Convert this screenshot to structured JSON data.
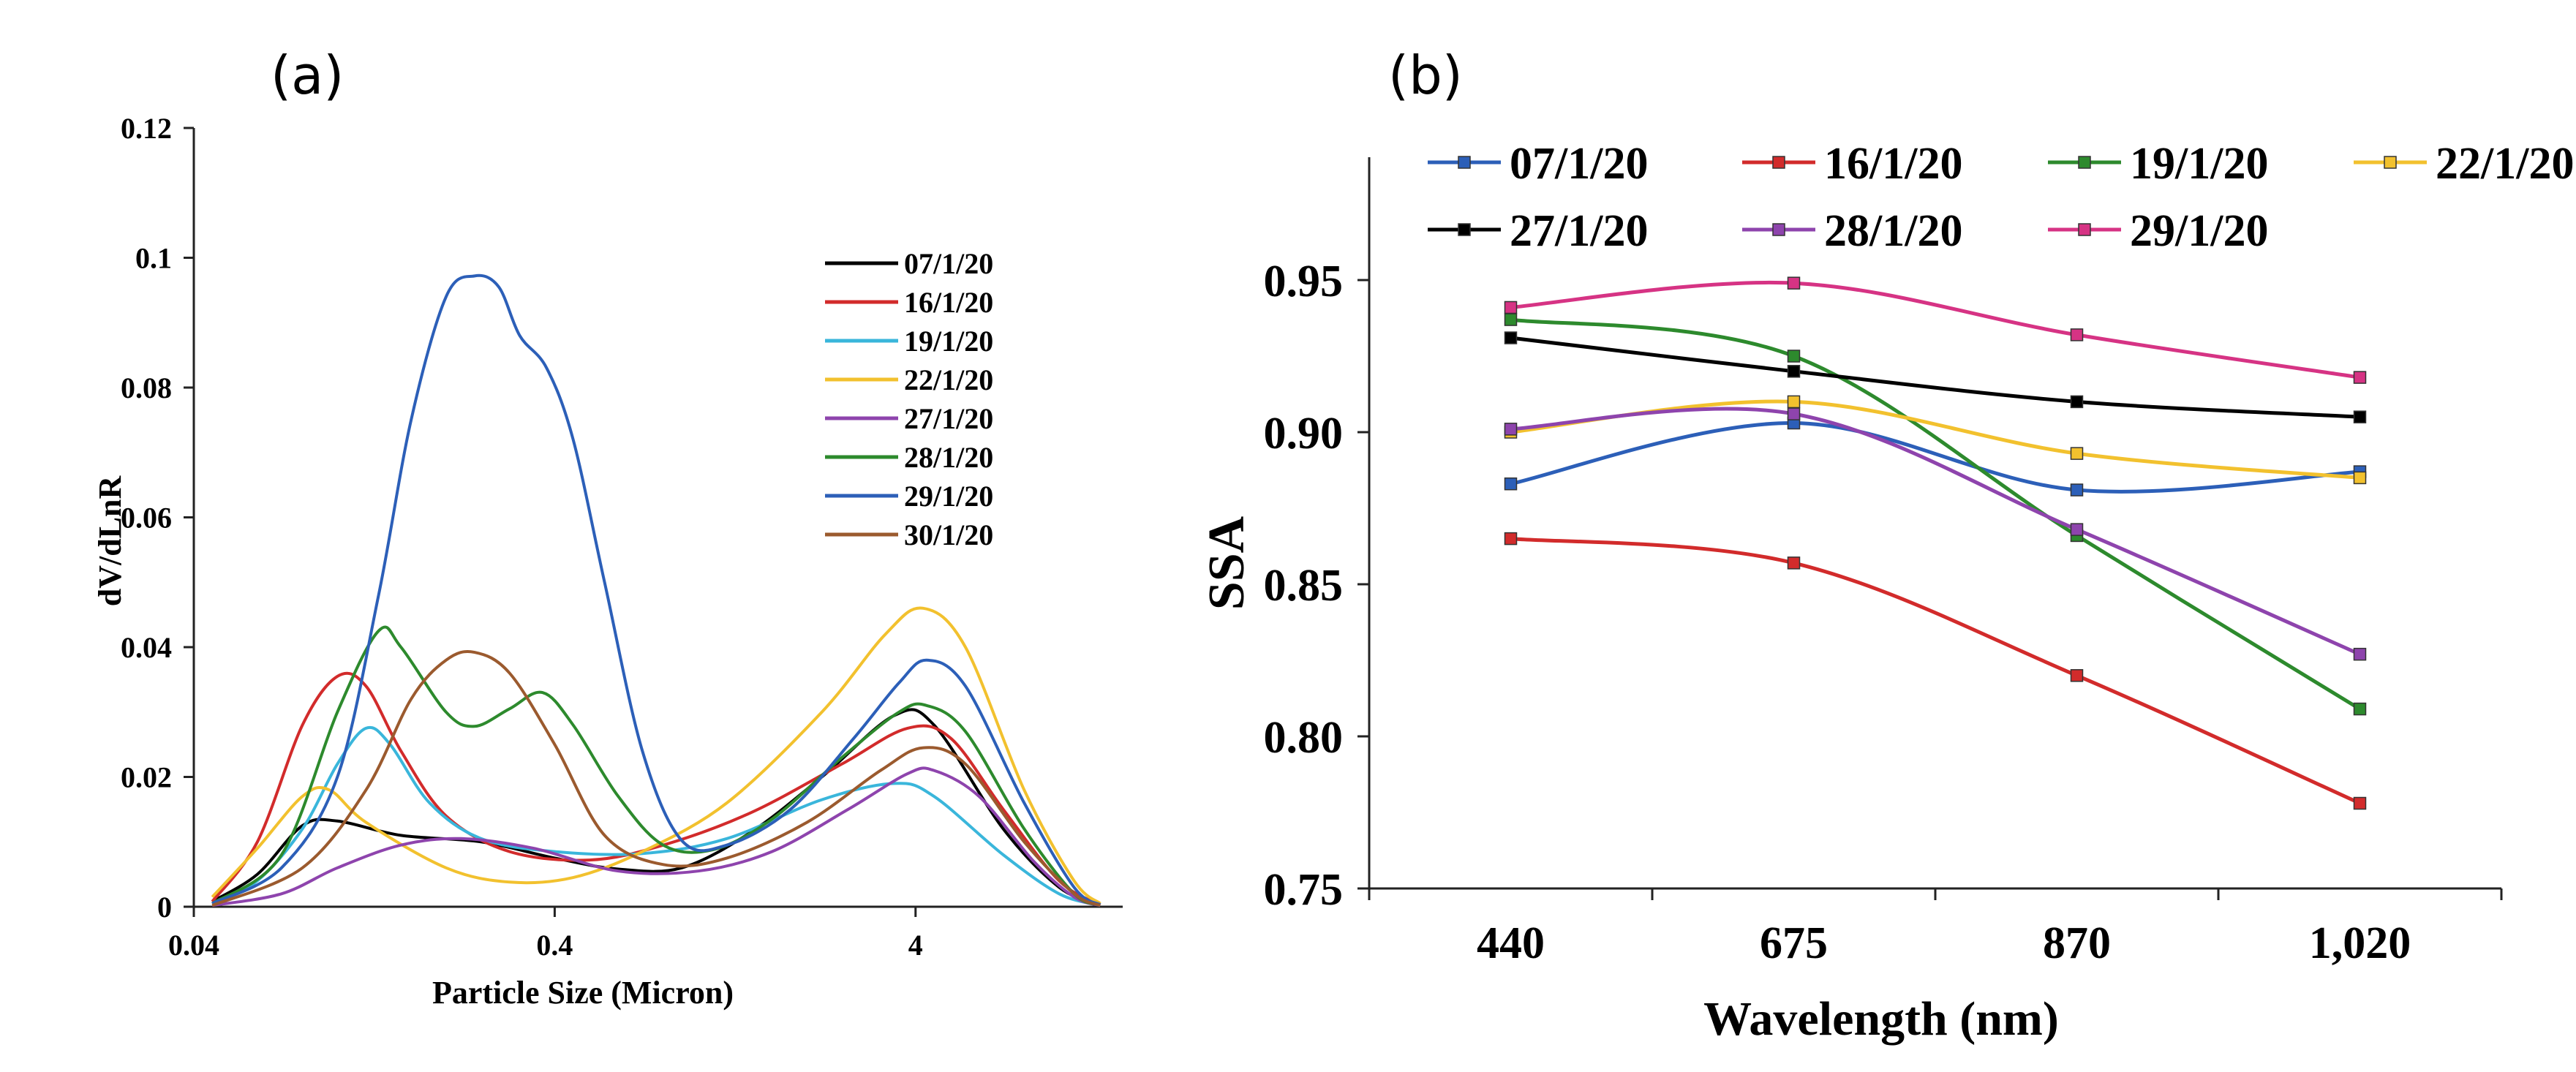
{
  "chart_data": [
    {
      "panel": "(a)",
      "type": "line",
      "title": "",
      "xlabel": "Particle Size (Micron)",
      "ylabel": "dV/dLnR",
      "xscale": "log",
      "xlim": [
        0.04,
        15
      ],
      "ylim": [
        0,
        0.12
      ],
      "xticks": [
        {
          "value": 0.04,
          "label": "0.04"
        },
        {
          "value": 0.4,
          "label": "0.4"
        },
        {
          "value": 4,
          "label": "4"
        }
      ],
      "yticks": [
        {
          "value": 0,
          "label": "0"
        },
        {
          "value": 0.02,
          "label": "0.02"
        },
        {
          "value": 0.04,
          "label": "0.04"
        },
        {
          "value": 0.06,
          "label": "0.06"
        },
        {
          "value": 0.08,
          "label": "0.08"
        },
        {
          "value": 0.1,
          "label": "0.1"
        },
        {
          "value": 0.12,
          "label": "0.12"
        }
      ],
      "legend_position": "right",
      "series": [
        {
          "name": "07/1/20",
          "color": "#000000",
          "points": [
            [
              0.045,
              0.0008
            ],
            [
              0.06,
              0.005
            ],
            [
              0.08,
              0.0125
            ],
            [
              0.1,
              0.0132
            ],
            [
              0.15,
              0.011
            ],
            [
              0.25,
              0.01
            ],
            [
              0.4,
              0.0075
            ],
            [
              0.6,
              0.0058
            ],
            [
              0.9,
              0.006
            ],
            [
              1.4,
              0.0115
            ],
            [
              2.2,
              0.02
            ],
            [
              3.5,
              0.0295
            ],
            [
              4.5,
              0.028
            ],
            [
              7,
              0.012
            ],
            [
              10,
              0.003
            ],
            [
              13,
              0.0003
            ]
          ]
        },
        {
          "name": "16/1/20",
          "color": "#d22b2b",
          "points": [
            [
              0.045,
              0.0008
            ],
            [
              0.06,
              0.01
            ],
            [
              0.08,
              0.028
            ],
            [
              0.1,
              0.0355
            ],
            [
              0.12,
              0.034
            ],
            [
              0.15,
              0.024
            ],
            [
              0.2,
              0.014
            ],
            [
              0.3,
              0.0085
            ],
            [
              0.5,
              0.0072
            ],
            [
              0.8,
              0.0095
            ],
            [
              1.4,
              0.0145
            ],
            [
              2.5,
              0.022
            ],
            [
              3.8,
              0.0275
            ],
            [
              5,
              0.026
            ],
            [
              7,
              0.015
            ],
            [
              10,
              0.004
            ],
            [
              13,
              0.0003
            ]
          ]
        },
        {
          "name": "19/1/20",
          "color": "#3ab6db",
          "points": [
            [
              0.045,
              0.0005
            ],
            [
              0.06,
              0.004
            ],
            [
              0.08,
              0.012
            ],
            [
              0.1,
              0.022
            ],
            [
              0.12,
              0.0275
            ],
            [
              0.14,
              0.025
            ],
            [
              0.18,
              0.016
            ],
            [
              0.25,
              0.0105
            ],
            [
              0.4,
              0.0085
            ],
            [
              0.7,
              0.0082
            ],
            [
              1.2,
              0.0105
            ],
            [
              2.2,
              0.0165
            ],
            [
              3.5,
              0.019
            ],
            [
              4.5,
              0.017
            ],
            [
              7,
              0.008
            ],
            [
              10,
              0.002
            ],
            [
              13,
              0.0002
            ]
          ]
        },
        {
          "name": "22/1/20",
          "color": "#f2c12e",
          "points": [
            [
              0.045,
              0.0015
            ],
            [
              0.06,
              0.009
            ],
            [
              0.08,
              0.017
            ],
            [
              0.095,
              0.018
            ],
            [
              0.12,
              0.013
            ],
            [
              0.2,
              0.006
            ],
            [
              0.3,
              0.0038
            ],
            [
              0.45,
              0.0045
            ],
            [
              0.7,
              0.0085
            ],
            [
              1.2,
              0.016
            ],
            [
              2.2,
              0.03
            ],
            [
              3.3,
              0.042
            ],
            [
              4.2,
              0.046
            ],
            [
              5.5,
              0.04
            ],
            [
              8,
              0.018
            ],
            [
              11,
              0.004
            ],
            [
              13,
              0.0005
            ]
          ]
        },
        {
          "name": "27/1/20",
          "color": "#8e44ad",
          "points": [
            [
              0.045,
              0.0002
            ],
            [
              0.07,
              0.002
            ],
            [
              0.1,
              0.006
            ],
            [
              0.15,
              0.0095
            ],
            [
              0.22,
              0.0105
            ],
            [
              0.35,
              0.009
            ],
            [
              0.6,
              0.0055
            ],
            [
              1,
              0.0055
            ],
            [
              1.6,
              0.0085
            ],
            [
              2.6,
              0.015
            ],
            [
              3.8,
              0.0205
            ],
            [
              4.5,
              0.021
            ],
            [
              6,
              0.017
            ],
            [
              8.5,
              0.007
            ],
            [
              11,
              0.0015
            ],
            [
              13,
              0.0002
            ]
          ]
        },
        {
          "name": "28/1/20",
          "color": "#2d8a2d",
          "points": [
            [
              0.045,
              0.0005
            ],
            [
              0.07,
              0.008
            ],
            [
              0.1,
              0.03
            ],
            [
              0.13,
              0.0425
            ],
            [
              0.15,
              0.04
            ],
            [
              0.2,
              0.03
            ],
            [
              0.24,
              0.0278
            ],
            [
              0.3,
              0.0305
            ],
            [
              0.37,
              0.033
            ],
            [
              0.45,
              0.028
            ],
            [
              0.6,
              0.017
            ],
            [
              0.8,
              0.0095
            ],
            [
              1.1,
              0.0088
            ],
            [
              1.6,
              0.0135
            ],
            [
              2.5,
              0.023
            ],
            [
              3.6,
              0.03
            ],
            [
              4.3,
              0.031
            ],
            [
              5.5,
              0.027
            ],
            [
              8,
              0.012
            ],
            [
              11,
              0.002
            ],
            [
              13,
              0.0003
            ]
          ]
        },
        {
          "name": "29/1/20",
          "color": "#2c5fb8",
          "points": [
            [
              0.045,
              0.0005
            ],
            [
              0.07,
              0.006
            ],
            [
              0.1,
              0.02
            ],
            [
              0.13,
              0.048
            ],
            [
              0.16,
              0.075
            ],
            [
              0.2,
              0.094
            ],
            [
              0.24,
              0.0972
            ],
            [
              0.28,
              0.0955
            ],
            [
              0.32,
              0.088
            ],
            [
              0.38,
              0.083
            ],
            [
              0.45,
              0.072
            ],
            [
              0.55,
              0.05
            ],
            [
              0.7,
              0.024
            ],
            [
              0.9,
              0.0102
            ],
            [
              1.2,
              0.0095
            ],
            [
              1.8,
              0.015
            ],
            [
              2.7,
              0.026
            ],
            [
              3.6,
              0.0345
            ],
            [
              4.3,
              0.038
            ],
            [
              5.5,
              0.034
            ],
            [
              8,
              0.016
            ],
            [
              11,
              0.003
            ],
            [
              13,
              0.0003
            ]
          ]
        },
        {
          "name": "30/1/20",
          "color": "#9b5a2e",
          "points": [
            [
              0.045,
              0.0002
            ],
            [
              0.08,
              0.006
            ],
            [
              0.12,
              0.018
            ],
            [
              0.16,
              0.032
            ],
            [
              0.2,
              0.038
            ],
            [
              0.24,
              0.0392
            ],
            [
              0.3,
              0.036
            ],
            [
              0.4,
              0.025
            ],
            [
              0.55,
              0.011
            ],
            [
              0.8,
              0.0065
            ],
            [
              1.2,
              0.0075
            ],
            [
              2,
              0.013
            ],
            [
              3.2,
              0.021
            ],
            [
              4.2,
              0.0245
            ],
            [
              5.5,
              0.022
            ],
            [
              8,
              0.01
            ],
            [
              11,
              0.002
            ],
            [
              13,
              0.0002
            ]
          ]
        }
      ]
    },
    {
      "panel": "(b)",
      "type": "line",
      "title": "",
      "xlabel": "Wavelength (nm)",
      "ylabel": "SSA",
      "categories": [
        "440",
        "675",
        "870",
        "1,020"
      ],
      "ylim": [
        0.75,
        1.0
      ],
      "yticks": [
        {
          "value": 0.75,
          "label": "0.75"
        },
        {
          "value": 0.8,
          "label": "0.80"
        },
        {
          "value": 0.85,
          "label": "0.85"
        },
        {
          "value": 0.9,
          "label": "0.90"
        },
        {
          "value": 0.95,
          "label": "0.95"
        }
      ],
      "legend_position": "top",
      "series": [
        {
          "name": "07/1/20",
          "color": "#2c5fb8",
          "values": [
            0.883,
            0.903,
            0.881,
            0.887
          ]
        },
        {
          "name": "16/1/20",
          "color": "#d22b2b",
          "values": [
            0.865,
            0.857,
            0.82,
            0.778
          ]
        },
        {
          "name": "19/1/20",
          "color": "#2d8a2d",
          "values": [
            0.937,
            0.925,
            0.866,
            0.809
          ]
        },
        {
          "name": "22/1/20",
          "color": "#f2c12e",
          "values": [
            0.9,
            0.91,
            0.893,
            0.885
          ]
        },
        {
          "name": "27/1/20",
          "color": "#000000",
          "values": [
            0.931,
            0.92,
            0.91,
            0.905
          ]
        },
        {
          "name": "28/1/20",
          "color": "#8e44ad",
          "values": [
            0.901,
            0.906,
            0.868,
            0.827
          ]
        },
        {
          "name": "29/1/20",
          "color": "#d63384",
          "values": [
            0.941,
            0.949,
            0.932,
            0.918
          ]
        }
      ]
    }
  ]
}
